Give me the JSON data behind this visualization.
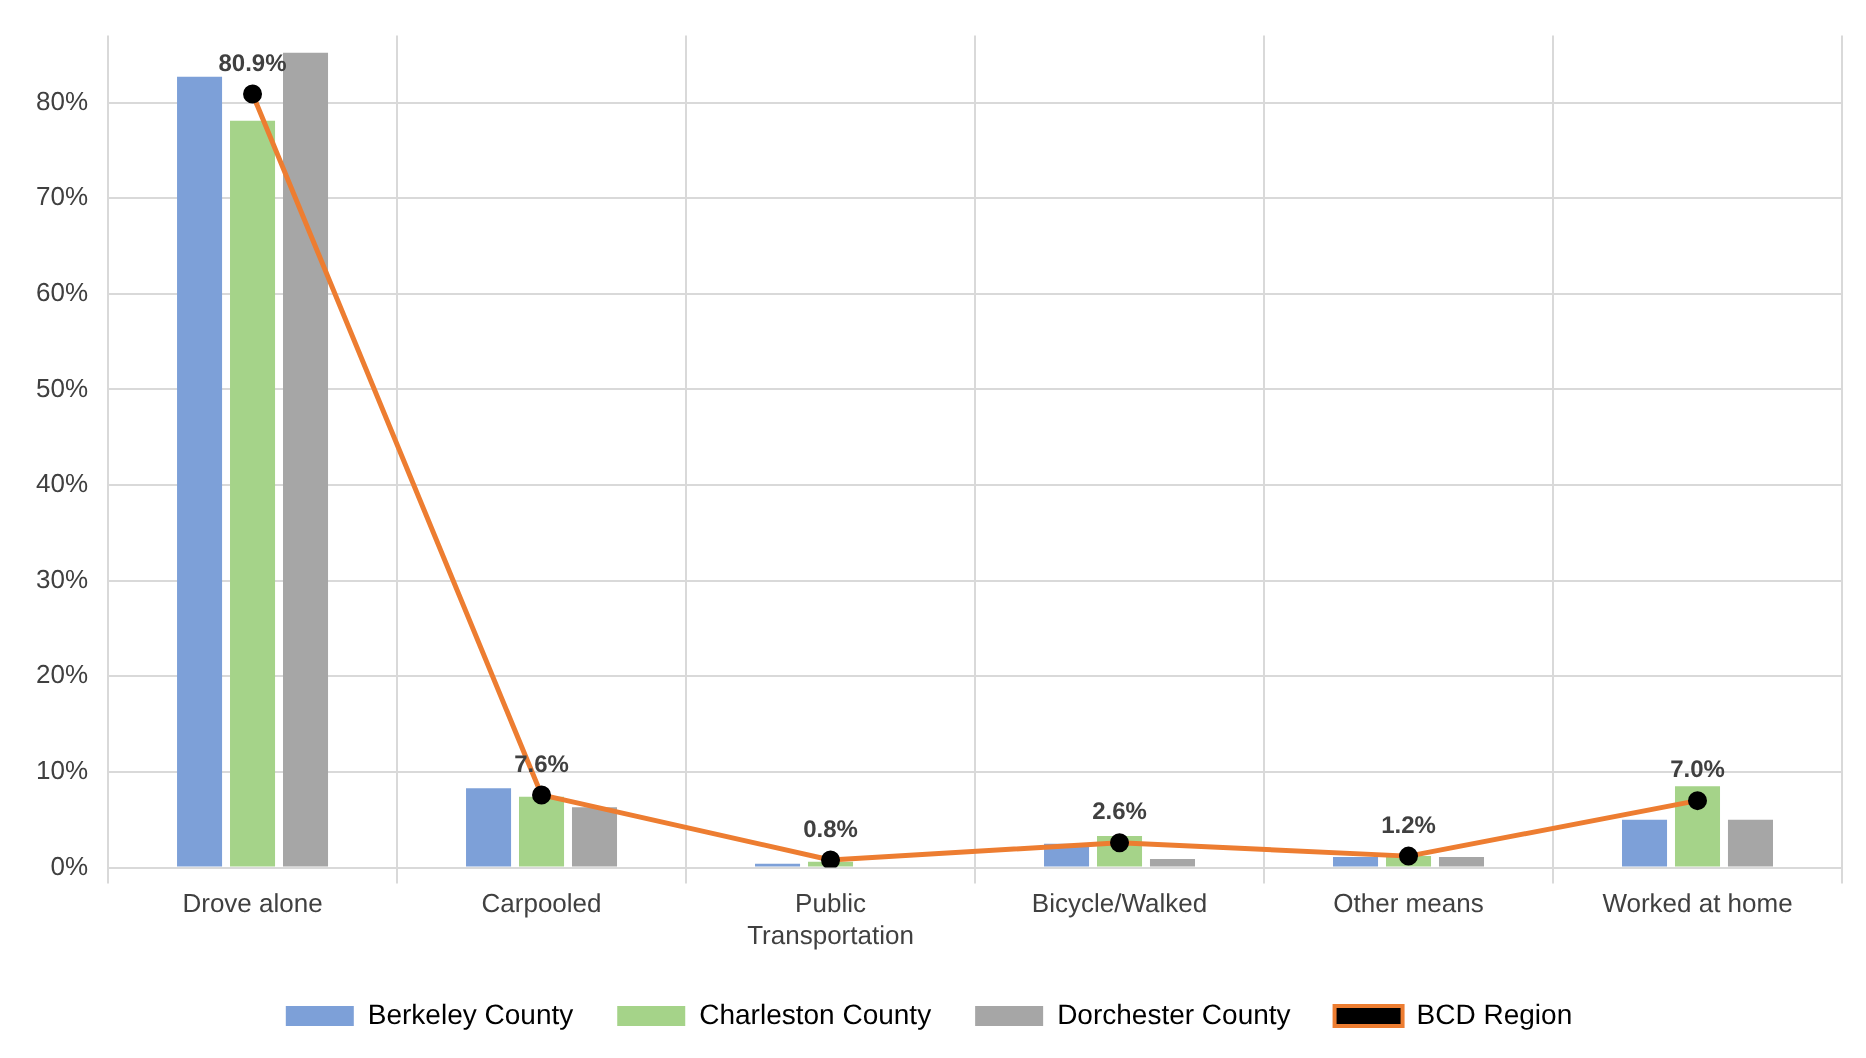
{
  "chart_data": {
    "type": "bar",
    "categories": [
      "Drove alone",
      "Carpooled",
      "Public Transportation",
      "Bicycle/Walked",
      "Other means",
      "Worked at home"
    ],
    "series": [
      {
        "name": "Berkeley County",
        "color": "#7da0d8",
        "values": [
          82.7,
          8.3,
          0.4,
          2.5,
          1.1,
          5.0
        ]
      },
      {
        "name": "Charleston County",
        "color": "#a5d389",
        "values": [
          78.1,
          7.4,
          0.6,
          3.3,
          1.2,
          8.5
        ]
      },
      {
        "name": "Dorchester County",
        "color": "#a6a6a6",
        "values": [
          85.2,
          6.3,
          null,
          0.9,
          1.1,
          5.0
        ]
      },
      {
        "name": "BCD Region",
        "type": "line",
        "color": "#ed7d31",
        "marker": "circle",
        "values": [
          80.9,
          7.6,
          0.8,
          2.6,
          1.2,
          7.0
        ],
        "value_labels": [
          "80.9%",
          "7.6%",
          "0.8%",
          "2.6%",
          "1.2%",
          "7.0%"
        ]
      }
    ],
    "ylim": [
      0,
      87
    ],
    "yticks": [
      {
        "value": 0,
        "label": "0%"
      },
      {
        "value": 10,
        "label": "10%"
      },
      {
        "value": 20,
        "label": "20%"
      },
      {
        "value": 30,
        "label": "30%"
      },
      {
        "value": 40,
        "label": "40%"
      },
      {
        "value": 50,
        "label": "50%"
      },
      {
        "value": 60,
        "label": "60%"
      },
      {
        "value": 70,
        "label": "70%"
      },
      {
        "value": 80,
        "label": "80%"
      }
    ],
    "grid": true,
    "legend": "bottom"
  }
}
